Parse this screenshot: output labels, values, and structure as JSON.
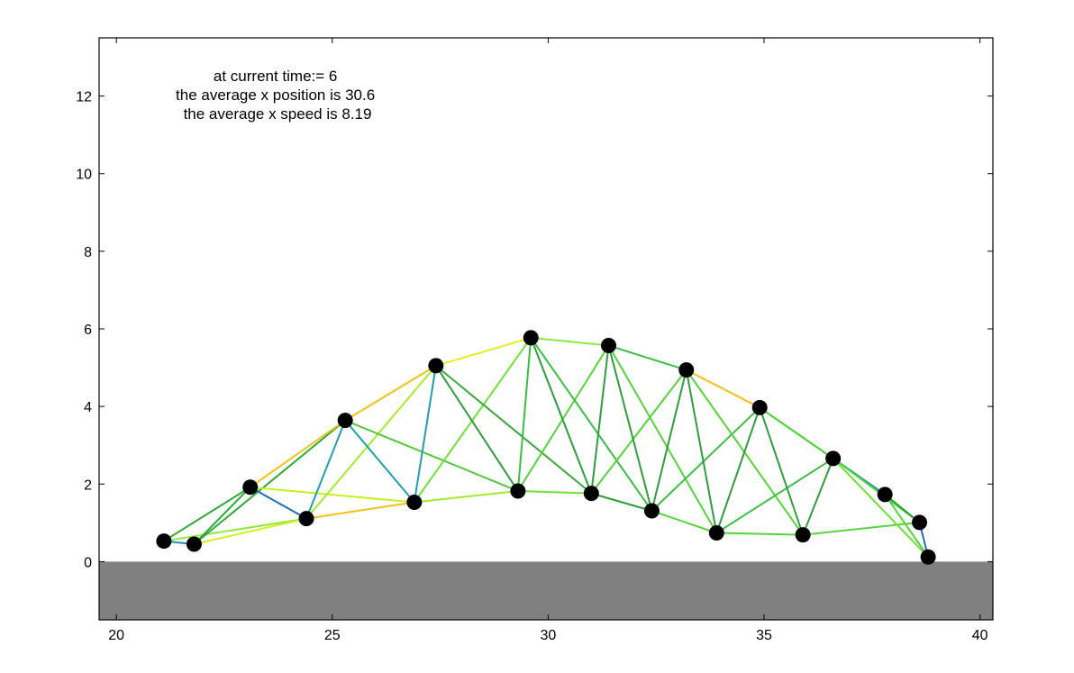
{
  "chart_data": {
    "type": "scatter",
    "title": "",
    "xlabel": "",
    "ylabel": "",
    "xlim": [
      19.6,
      40.3
    ],
    "ylim": [
      -1.5,
      13.5
    ],
    "x_ticks": [
      20,
      25,
      30,
      35,
      40
    ],
    "y_ticks": [
      0,
      2,
      4,
      6,
      8,
      10,
      12
    ],
    "x_tick_labels": [
      "20",
      "25",
      "30",
      "35",
      "40"
    ],
    "y_tick_labels": [
      "0",
      "2",
      "4",
      "6",
      "8",
      "10",
      "12"
    ],
    "grid": false,
    "ground": {
      "top": 0,
      "color": "#808080"
    },
    "annotation": {
      "lines": [
        "at current time:= 6",
        "the average x position is 30.6",
        "the average x speed is 8.19"
      ]
    },
    "nodes": [
      {
        "x": 21.1,
        "y": 0.53
      },
      {
        "x": 21.8,
        "y": 0.45
      },
      {
        "x": 23.1,
        "y": 1.92
      },
      {
        "x": 24.4,
        "y": 1.11
      },
      {
        "x": 25.3,
        "y": 3.64
      },
      {
        "x": 26.9,
        "y": 1.53
      },
      {
        "x": 27.4,
        "y": 5.05
      },
      {
        "x": 29.3,
        "y": 1.82
      },
      {
        "x": 29.6,
        "y": 5.77
      },
      {
        "x": 31.0,
        "y": 1.76
      },
      {
        "x": 31.4,
        "y": 5.57
      },
      {
        "x": 32.4,
        "y": 1.31
      },
      {
        "x": 33.2,
        "y": 4.94
      },
      {
        "x": 33.9,
        "y": 0.74
      },
      {
        "x": 34.9,
        "y": 3.97
      },
      {
        "x": 35.9,
        "y": 0.69
      },
      {
        "x": 36.6,
        "y": 2.66
      },
      {
        "x": 37.8,
        "y": 1.73
      },
      {
        "x": 38.6,
        "y": 1.01
      },
      {
        "x": 38.8,
        "y": 0.12
      }
    ],
    "edges": [
      {
        "from": 0,
        "to": 1,
        "color": "#1f8fb5"
      },
      {
        "from": 0,
        "to": 2,
        "color": "#2ea836"
      },
      {
        "from": 0,
        "to": 3,
        "color": "#8fe83a"
      },
      {
        "from": 1,
        "to": 2,
        "color": "#2ea836"
      },
      {
        "from": 1,
        "to": 3,
        "color": "#d6f01e"
      },
      {
        "from": 1,
        "to": 4,
        "color": "#2ea836"
      },
      {
        "from": 2,
        "to": 3,
        "color": "#1f6fb5"
      },
      {
        "from": 2,
        "to": 4,
        "color": "#f2c21a"
      },
      {
        "from": 2,
        "to": 5,
        "color": "#c6f01e"
      },
      {
        "from": 3,
        "to": 4,
        "color": "#1f9fb0"
      },
      {
        "from": 3,
        "to": 5,
        "color": "#f2c21a"
      },
      {
        "from": 3,
        "to": 6,
        "color": "#a4ec2a"
      },
      {
        "from": 4,
        "to": 5,
        "color": "#1f9fb0"
      },
      {
        "from": 4,
        "to": 6,
        "color": "#f2c21a"
      },
      {
        "from": 4,
        "to": 7,
        "color": "#52c83a"
      },
      {
        "from": 5,
        "to": 6,
        "color": "#1f9fb0"
      },
      {
        "from": 5,
        "to": 7,
        "color": "#a4ec2a"
      },
      {
        "from": 5,
        "to": 8,
        "color": "#6ee23a"
      },
      {
        "from": 6,
        "to": 7,
        "color": "#2e9e3c"
      },
      {
        "from": 6,
        "to": 8,
        "color": "#e8ec22"
      },
      {
        "from": 6,
        "to": 9,
        "color": "#3aa83a"
      },
      {
        "from": 7,
        "to": 8,
        "color": "#3abf42"
      },
      {
        "from": 7,
        "to": 9,
        "color": "#6ee23a"
      },
      {
        "from": 7,
        "to": 10,
        "color": "#52d43a"
      },
      {
        "from": 8,
        "to": 9,
        "color": "#2e9e3c"
      },
      {
        "from": 8,
        "to": 10,
        "color": "#8fe83a"
      },
      {
        "from": 8,
        "to": 11,
        "color": "#3abf42"
      },
      {
        "from": 9,
        "to": 10,
        "color": "#2e9e3c"
      },
      {
        "from": 9,
        "to": 11,
        "color": "#2e9e3c"
      },
      {
        "from": 9,
        "to": 12,
        "color": "#52d43a"
      },
      {
        "from": 10,
        "to": 11,
        "color": "#2e9e3c"
      },
      {
        "from": 10,
        "to": 12,
        "color": "#3abf42"
      },
      {
        "from": 10,
        "to": 13,
        "color": "#52d43a"
      },
      {
        "from": 11,
        "to": 12,
        "color": "#2e9e3c"
      },
      {
        "from": 11,
        "to": 13,
        "color": "#52d43a"
      },
      {
        "from": 11,
        "to": 14,
        "color": "#3abf42"
      },
      {
        "from": 12,
        "to": 13,
        "color": "#2e9e3c"
      },
      {
        "from": 12,
        "to": 14,
        "color": "#f2c21a"
      },
      {
        "from": 12,
        "to": 15,
        "color": "#52d43a"
      },
      {
        "from": 13,
        "to": 14,
        "color": "#2e9e3c"
      },
      {
        "from": 13,
        "to": 15,
        "color": "#52d43a"
      },
      {
        "from": 13,
        "to": 16,
        "color": "#3abf42"
      },
      {
        "from": 14,
        "to": 15,
        "color": "#2e9e3c"
      },
      {
        "from": 14,
        "to": 16,
        "color": "#2ea836"
      },
      {
        "from": 14,
        "to": 17,
        "color": "#52d43a"
      },
      {
        "from": 15,
        "to": 16,
        "color": "#2e9e3c"
      },
      {
        "from": 15,
        "to": 18,
        "color": "#52d43a"
      },
      {
        "from": 16,
        "to": 17,
        "color": "#1f8fb5"
      },
      {
        "from": 16,
        "to": 18,
        "color": "#52d43a"
      },
      {
        "from": 16,
        "to": 19,
        "color": "#6ee23a"
      },
      {
        "from": 17,
        "to": 18,
        "color": "#2e9e3c"
      },
      {
        "from": 17,
        "to": 19,
        "color": "#52d43a"
      },
      {
        "from": 18,
        "to": 19,
        "color": "#1f6fb5"
      }
    ],
    "node_color": "#000000",
    "ground_color": "#808080"
  }
}
